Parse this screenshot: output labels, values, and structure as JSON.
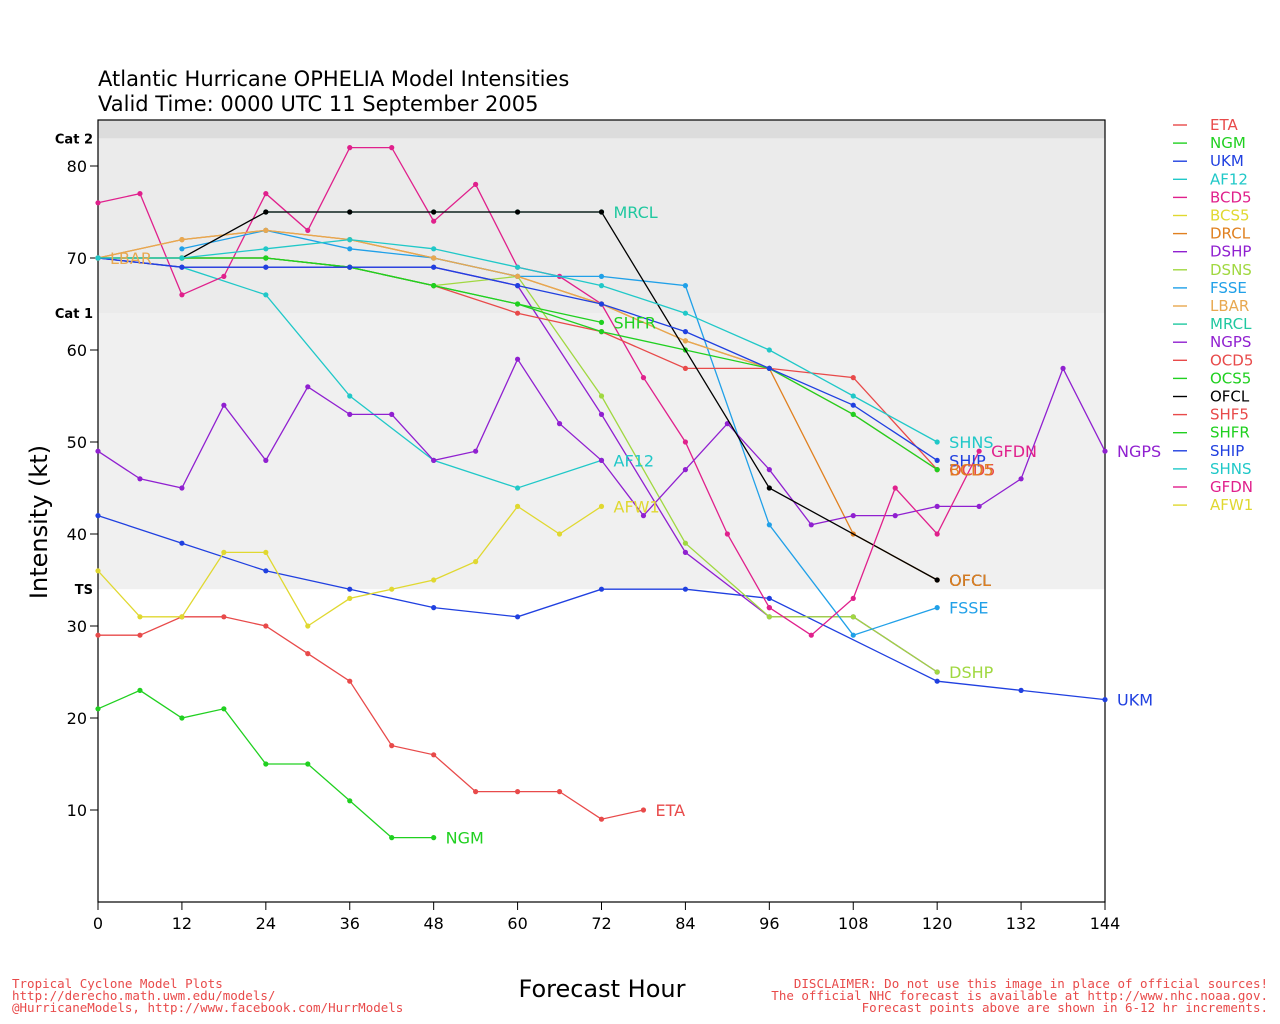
{
  "title": {
    "line1": "Atlantic Hurricane OPHELIA Model Intensities",
    "line2": "Valid Time: 0000 UTC 11 September 2005"
  },
  "footer": {
    "left": [
      "Tropical Cyclone Model Plots",
      "http://derecho.math.uwm.edu/models/",
      "@HurricaneModels, http://www.facebook.com/HurrModels"
    ],
    "right": [
      "DISCLAIMER: Do not use this image in place of official sources!",
      "The official NHC forecast is available at http://www.nhc.noaa.gov.",
      "Forecast points above are shown in 6-12 hr increments."
    ]
  },
  "chart_data": {
    "type": "line",
    "xlabel": "Forecast Hour",
    "ylabel": "Intensity (kt)",
    "xlim": [
      0,
      144
    ],
    "ylim": [
      0,
      85
    ],
    "xticks": [
      0,
      12,
      24,
      36,
      48,
      60,
      72,
      84,
      96,
      108,
      120,
      132,
      144
    ],
    "yticks": [
      10,
      20,
      30,
      40,
      50,
      60,
      70,
      80
    ],
    "bands": [
      {
        "label": "TS",
        "from": 34,
        "to": 64,
        "color": "#f0f0f0"
      },
      {
        "label": "Cat 1",
        "from": 64,
        "to": 83,
        "color": "#ebebeb"
      },
      {
        "label": "Cat 2",
        "from": 83,
        "to": 85,
        "color": "#dcdcdc"
      }
    ],
    "grid": false,
    "legend_position": "right",
    "series": [
      {
        "name": "ETA",
        "color": "#e84a4a",
        "label": "ETA",
        "x": [
          0,
          6,
          12,
          18,
          24,
          30,
          36,
          42,
          48,
          54,
          60,
          66,
          72,
          78
        ],
        "y": [
          29,
          29,
          31,
          31,
          30,
          27,
          24,
          17,
          16,
          12,
          12,
          12,
          9,
          10
        ]
      },
      {
        "name": "NGM",
        "color": "#20d020",
        "label": "NGM",
        "x": [
          0,
          6,
          12,
          18,
          24,
          30,
          36,
          42,
          48
        ],
        "y": [
          21,
          23,
          20,
          21,
          15,
          15,
          11,
          7,
          7
        ]
      },
      {
        "name": "UKM",
        "color": "#2040e0",
        "label": "UKM",
        "x": [
          0,
          12,
          24,
          36,
          48,
          60,
          72,
          84,
          96,
          120,
          132,
          144
        ],
        "y": [
          42,
          39,
          36,
          34,
          32,
          31,
          34,
          34,
          33,
          24,
          23,
          22
        ]
      },
      {
        "name": "AF12",
        "color": "#20c8c8",
        "label": "AF12",
        "x": [
          0,
          12,
          24,
          36,
          48,
          60,
          72
        ],
        "y": [
          70,
          69,
          66,
          55,
          48,
          45,
          48
        ]
      },
      {
        "name": "BCD5",
        "color": "#e0208c",
        "label": "",
        "x": [
          0,
          6,
          12,
          18,
          24,
          30,
          36,
          42,
          48,
          54,
          60,
          66,
          72,
          78,
          84,
          90,
          96
        ],
        "y": [
          76,
          77,
          66,
          68,
          77,
          73,
          82,
          82,
          74,
          78,
          69,
          68,
          65,
          57,
          50,
          40,
          32
        ]
      },
      {
        "name": "BCS5",
        "color": "#e0d830",
        "label": "",
        "x": [],
        "y": []
      },
      {
        "name": "DRCL",
        "color": "#e08020",
        "label": "",
        "x": [
          0,
          12,
          24,
          36,
          48,
          60,
          72,
          84,
          96,
          108,
          120
        ],
        "y": [
          70,
          72,
          73,
          72,
          70,
          68,
          65,
          61,
          58,
          40,
          35
        ]
      },
      {
        "name": "DSHP",
        "color": "#9020d0",
        "label": "",
        "x": [
          0,
          12,
          24,
          36,
          48,
          60,
          72,
          84,
          96,
          108,
          120
        ],
        "y": [
          70,
          69,
          69,
          69,
          69,
          67,
          53,
          38,
          31,
          31,
          25
        ]
      },
      {
        "name": "DSNS",
        "color": "#a0d840",
        "label": "DSHP",
        "x": [
          0,
          12,
          24,
          36,
          48,
          60,
          72,
          84,
          96,
          108,
          120
        ],
        "y": [
          70,
          70,
          70,
          69,
          67,
          68,
          55,
          39,
          31,
          31,
          25
        ]
      },
      {
        "name": "FSSE",
        "color": "#20a0e8",
        "label": "FSSE",
        "x": [
          12,
          24,
          36,
          48,
          60,
          72,
          84,
          96,
          108,
          120
        ],
        "y": [
          71,
          73,
          71,
          70,
          68,
          68,
          67,
          41,
          29,
          32
        ]
      },
      {
        "name": "LBAR",
        "color": "#e8a850",
        "label": "",
        "x": [
          0,
          12,
          24,
          36,
          48,
          60,
          72,
          84,
          96,
          108,
          120
        ],
        "y": [
          70,
          72,
          73,
          72,
          70,
          68,
          65,
          61,
          58,
          53,
          47
        ]
      },
      {
        "name": "MRCL",
        "color": "#20c8a0",
        "label": "MRCL",
        "x": [
          24,
          36,
          48,
          60,
          72
        ],
        "y": [
          75,
          75,
          75,
          75,
          75
        ]
      },
      {
        "name": "NGPS",
        "color": "#9020d0",
        "label": "NGPS",
        "x": [
          0,
          6,
          12,
          18,
          24,
          30,
          36,
          42,
          48,
          54,
          60,
          66,
          72,
          78,
          84,
          90,
          96,
          102,
          108,
          114,
          120,
          126,
          132,
          138,
          144
        ],
        "y": [
          49,
          46,
          45,
          54,
          48,
          56,
          53,
          53,
          48,
          49,
          59,
          52,
          48,
          42,
          47,
          52,
          47,
          41,
          42,
          42,
          43,
          43,
          46,
          58,
          49
        ]
      },
      {
        "name": "OCD5",
        "color": "#e84a4a",
        "label": "",
        "x": [
          0,
          12,
          24,
          36,
          48,
          60,
          72,
          84,
          96,
          108,
          120
        ],
        "y": [
          70,
          70,
          70,
          69,
          67,
          64,
          62,
          58,
          58,
          57,
          47
        ]
      },
      {
        "name": "OCS5",
        "color": "#20d020",
        "label": "",
        "x": [
          0,
          12,
          24,
          36,
          48,
          60,
          72,
          84,
          96,
          108,
          120
        ],
        "y": [
          70,
          70,
          70,
          69,
          67,
          65,
          62,
          60,
          58,
          53,
          47
        ]
      },
      {
        "name": "OFCL",
        "color": "#000000",
        "label": "OFCL",
        "x": [
          12,
          24,
          36,
          48,
          60,
          72,
          96,
          120
        ],
        "y": [
          70,
          75,
          75,
          75,
          75,
          75,
          45,
          35
        ]
      },
      {
        "name": "SHF5",
        "color": "#e84a4a",
        "label": "",
        "x": [],
        "y": []
      },
      {
        "name": "SHFR",
        "color": "#20d020",
        "label": "SHFR",
        "x": [
          0,
          12,
          24,
          36,
          48,
          60,
          72
        ],
        "y": [
          70,
          70,
          70,
          69,
          67,
          65,
          63
        ]
      },
      {
        "name": "SHIP",
        "color": "#2040e0",
        "label": "SHIP",
        "x": [
          0,
          12,
          24,
          36,
          48,
          60,
          72,
          84,
          96,
          108,
          120
        ],
        "y": [
          70,
          69,
          69,
          69,
          69,
          67,
          65,
          62,
          58,
          54,
          48
        ]
      },
      {
        "name": "SHNS",
        "color": "#20c8c8",
        "label": "SHNS",
        "x": [
          0,
          12,
          24,
          36,
          48,
          60,
          72,
          84,
          96,
          108,
          120
        ],
        "y": [
          70,
          70,
          71,
          72,
          71,
          69,
          67,
          64,
          60,
          55,
          50
        ]
      },
      {
        "name": "GFDN",
        "color": "#e0208c",
        "label": "GFDN",
        "x": [
          96,
          102,
          108,
          114,
          120,
          126
        ],
        "y": [
          32,
          29,
          33,
          45,
          40,
          49
        ]
      },
      {
        "name": "AFW1",
        "color": "#e0d830",
        "label": "AFW1",
        "x": [
          0,
          6,
          12,
          18,
          24,
          30,
          36,
          42,
          48,
          54,
          60,
          66,
          72
        ],
        "y": [
          36,
          31,
          31,
          38,
          38,
          30,
          33,
          34,
          35,
          37,
          43,
          40,
          43
        ]
      }
    ],
    "extra_labels": [
      {
        "text": "LBAR",
        "color": "#e8a850",
        "x": 0,
        "y": 70
      },
      {
        "text": "OCD5",
        "color": "#e84a4a",
        "x": 120,
        "y": 47
      },
      {
        "text": "BCD5",
        "color": "#e08020",
        "x": 120,
        "y": 47
      },
      {
        "text": "OFCL",
        "color": "#e08020",
        "x": 120,
        "y": 35
      }
    ]
  }
}
